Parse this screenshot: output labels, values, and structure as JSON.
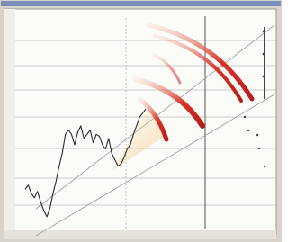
{
  "chart_data": {
    "type": "line",
    "color": "#2a2a2a",
    "values": [
      19,
      21,
      17,
      15,
      18,
      13,
      9,
      6,
      10,
      17,
      23,
      30,
      36,
      45,
      47,
      45,
      40,
      46,
      49,
      43,
      45,
      47,
      41,
      45,
      44,
      40,
      38,
      43,
      36,
      33,
      30,
      31,
      34,
      38,
      40,
      45,
      49,
      53,
      55,
      57
    ],
    "ylim": [
      0,
      100
    ]
  }
}
